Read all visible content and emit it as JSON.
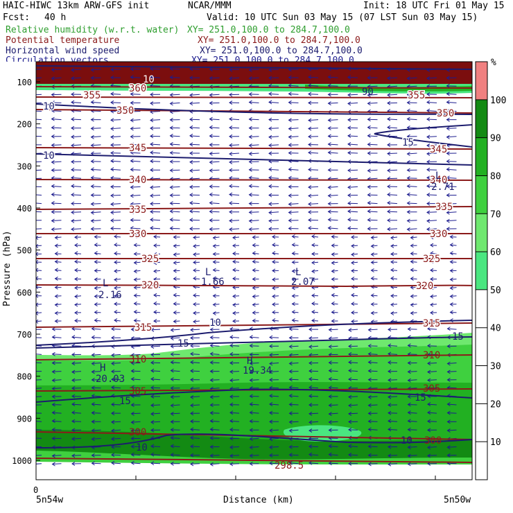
{
  "header": {
    "title": "HAIC-HIWC 13km ARW-GFS init",
    "org": "NCAR/MMM",
    "init": "Init: 18 UTC Fri 01 May 15",
    "fcst_label": "Fcst:",
    "fcst_value": "40 h",
    "valid": "Valid: 10 UTC Sun 03 May 15 (07 LST Sun 03 May 15)"
  },
  "fields": [
    {
      "name": "Relative humidity (w.r.t. water)",
      "xy": "XY= 251.0,100.0 to 284.7,100.0",
      "color": "#2e9e2e"
    },
    {
      "name": "Potential temperature",
      "xy": "XY= 251.0,100.0 to 284.7,100.0",
      "color": "#8b1a1a"
    },
    {
      "name": "Horizontal wind speed",
      "xy": "XY= 251.0,100.0 to 284.7,100.0",
      "color": "#1c1c6e"
    },
    {
      "name": "Circulation vectors",
      "xy": "XY= 251.0,100.0 to 284.7,100.0",
      "color": "#1c1c8e"
    }
  ],
  "chart_data": {
    "type": "heatmap",
    "ylabel": "Pressure (hPa)",
    "xlabel": "Distance (km)",
    "x_start_label": "5n54w",
    "x_end_label": "5n50w",
    "x_zero_tick": "0",
    "y_ticks": [
      100,
      200,
      300,
      400,
      500,
      600,
      700,
      800,
      900,
      1000
    ],
    "colorbar": {
      "unit": "%",
      "ticks": [
        10,
        20,
        30,
        40,
        50,
        60,
        70,
        80,
        90,
        100
      ],
      "bins": [
        {
          "from": 50,
          "to": 60,
          "color": "#4ae680"
        },
        {
          "from": 60,
          "to": 70,
          "color": "#6fe86f"
        },
        {
          "from": 70,
          "to": 80,
          "color": "#3fd03f"
        },
        {
          "from": 80,
          "to": 90,
          "color": "#22b022"
        },
        {
          "from": 90,
          "to": 100,
          "color": "#138a13"
        },
        {
          "from": 100,
          "to": 110,
          "color": "#f08080"
        }
      ]
    },
    "theta_contours": [
      {
        "label": "360",
        "p": 120
      },
      {
        "label": "355",
        "p": 130
      },
      {
        "label": "350",
        "p": 160
      },
      {
        "label": "345",
        "p": 240
      },
      {
        "label": "340",
        "p": 330
      },
      {
        "label": "335",
        "p": 405
      },
      {
        "label": "330",
        "p": 460
      },
      {
        "label": "325",
        "p": 520
      },
      {
        "label": "320",
        "p": 585
      },
      {
        "label": "315",
        "p": 690
      },
      {
        "label": "310",
        "p": 785
      },
      {
        "label": "305",
        "p": 840
      },
      {
        "label": "300",
        "p": 945
      },
      {
        "label": "298.5",
        "p": 1000
      }
    ],
    "wind_labels": [
      {
        "label": "10",
        "p": 165
      },
      {
        "label": "15",
        "p": 230
      },
      {
        "label": "10",
        "p": 255
      },
      {
        "label": "10",
        "p": 677
      },
      {
        "label": "15",
        "p": 722
      },
      {
        "label": "15",
        "p": 700
      },
      {
        "label": "15",
        "p": 865
      },
      {
        "label": "15",
        "p": 858
      },
      {
        "label": "10",
        "p": 965
      },
      {
        "label": "10",
        "p": 950
      },
      {
        "label": "90",
        "p": 115
      },
      {
        "label": "10",
        "p": 105
      }
    ],
    "extrema": [
      {
        "type": "L",
        "value": "2.16",
        "p": 600
      },
      {
        "type": "L",
        "value": "1.66",
        "p": 560
      },
      {
        "type": "L",
        "value": "2.07",
        "p": 560
      },
      {
        "type": "L",
        "value": "2.71",
        "p": 345
      },
      {
        "type": "H",
        "value": "20.03",
        "p": 810
      },
      {
        "type": "H",
        "value": "19.34",
        "p": 795
      }
    ],
    "grid": false
  }
}
